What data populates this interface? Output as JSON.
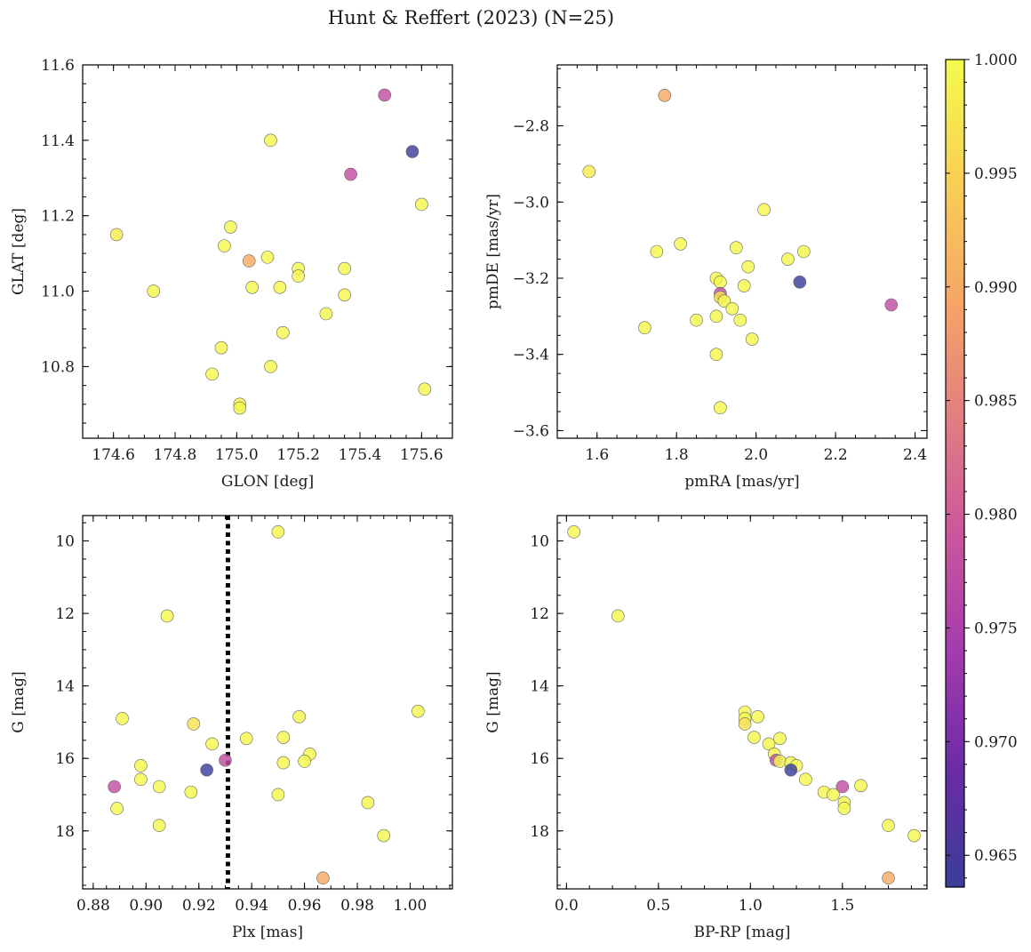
{
  "figure": {
    "title": "Hunt & Reffert (2023) (N=25)"
  },
  "colorbar": {
    "min": 0.9636,
    "max": 1.0,
    "colormap": "plasma",
    "ticks": [
      0.965,
      0.97,
      0.975,
      0.98,
      0.985,
      0.99,
      0.995,
      1.0
    ],
    "tick_labels": [
      "0.965",
      "0.970",
      "0.975",
      "0.980",
      "0.985",
      "0.990",
      "0.995",
      "1.000"
    ]
  },
  "chart_data": [
    {
      "type": "scatter",
      "xlabel": "GLON [deg]",
      "ylabel": "GLAT [deg]",
      "xlim": [
        174.5,
        175.7
      ],
      "ylim": [
        10.61,
        11.6
      ],
      "xticks": [
        174.6,
        174.8,
        175.0,
        175.2,
        175.4,
        175.6
      ],
      "xtick_labels": [
        "174.6",
        "174.8",
        "175.0",
        "175.2",
        "175.4",
        "175.6"
      ],
      "yticks": [
        10.8,
        11.0,
        11.2,
        11.4,
        11.6
      ],
      "ytick_labels": [
        "10.8",
        "11.0",
        "11.2",
        "11.4",
        "11.6"
      ],
      "points": [
        {
          "x": 174.61,
          "y": 11.15,
          "c": 0.998
        },
        {
          "x": 174.73,
          "y": 11.0,
          "c": 0.9995
        },
        {
          "x": 174.92,
          "y": 10.78,
          "c": 0.9995
        },
        {
          "x": 174.95,
          "y": 10.85,
          "c": 0.9995
        },
        {
          "x": 174.96,
          "y": 11.12,
          "c": 0.9995
        },
        {
          "x": 174.98,
          "y": 11.17,
          "c": 0.9995
        },
        {
          "x": 175.01,
          "y": 10.7,
          "c": 0.9995
        },
        {
          "x": 175.01,
          "y": 10.69,
          "c": 0.9995
        },
        {
          "x": 175.04,
          "y": 11.08,
          "c": 0.99
        },
        {
          "x": 175.05,
          "y": 11.01,
          "c": 0.9995
        },
        {
          "x": 175.1,
          "y": 11.09,
          "c": 0.9995
        },
        {
          "x": 175.11,
          "y": 11.4,
          "c": 0.9995
        },
        {
          "x": 175.11,
          "y": 10.8,
          "c": 0.9995
        },
        {
          "x": 175.14,
          "y": 11.01,
          "c": 0.9995
        },
        {
          "x": 175.15,
          "y": 10.89,
          "c": 0.9995
        },
        {
          "x": 175.2,
          "y": 11.06,
          "c": 0.9995
        },
        {
          "x": 175.2,
          "y": 11.04,
          "c": 0.9995
        },
        {
          "x": 175.29,
          "y": 10.94,
          "c": 0.9995
        },
        {
          "x": 175.35,
          "y": 11.06,
          "c": 0.9995
        },
        {
          "x": 175.35,
          "y": 10.99,
          "c": 0.9995
        },
        {
          "x": 175.37,
          "y": 11.31,
          "c": 0.9775
        },
        {
          "x": 175.48,
          "y": 11.52,
          "c": 0.9775
        },
        {
          "x": 175.57,
          "y": 11.37,
          "c": 0.9636
        },
        {
          "x": 175.6,
          "y": 11.23,
          "c": 0.9995
        },
        {
          "x": 175.61,
          "y": 10.74,
          "c": 0.9995
        }
      ]
    },
    {
      "type": "scatter",
      "xlabel": "pmRA [mas/yr]",
      "ylabel": "pmDE [mas/yr]",
      "xlim": [
        1.5,
        2.43
      ],
      "ylim": [
        -3.62,
        -2.64
      ],
      "xticks": [
        1.6,
        1.8,
        2.0,
        2.2,
        2.4
      ],
      "xtick_labels": [
        "1.6",
        "1.8",
        "2.0",
        "2.2",
        "2.4"
      ],
      "yticks": [
        -3.6,
        -3.4,
        -3.2,
        -3.0,
        -2.8
      ],
      "ytick_labels": [
        "−3.6",
        "−3.4",
        "−3.2",
        "−3.0",
        "−2.8"
      ],
      "points": [
        {
          "x": 1.77,
          "y": -2.72,
          "c": 0.99
        },
        {
          "x": 1.58,
          "y": -2.92,
          "c": 0.998
        },
        {
          "x": 2.02,
          "y": -3.02,
          "c": 0.9995
        },
        {
          "x": 1.81,
          "y": -3.11,
          "c": 0.9995
        },
        {
          "x": 1.95,
          "y": -3.12,
          "c": 0.9995
        },
        {
          "x": 1.75,
          "y": -3.13,
          "c": 0.9995
        },
        {
          "x": 2.12,
          "y": -3.13,
          "c": 0.9995
        },
        {
          "x": 2.08,
          "y": -3.15,
          "c": 0.9995
        },
        {
          "x": 1.98,
          "y": -3.17,
          "c": 0.9995
        },
        {
          "x": 1.9,
          "y": -3.2,
          "c": 0.9995
        },
        {
          "x": 2.11,
          "y": -3.21,
          "c": 0.9636
        },
        {
          "x": 1.91,
          "y": -3.21,
          "c": 0.9995
        },
        {
          "x": 1.97,
          "y": -3.22,
          "c": 0.9995
        },
        {
          "x": 1.91,
          "y": -3.24,
          "c": 0.9775
        },
        {
          "x": 1.91,
          "y": -3.25,
          "c": 0.997
        },
        {
          "x": 1.92,
          "y": -3.26,
          "c": 0.9995
        },
        {
          "x": 2.34,
          "y": -3.27,
          "c": 0.9775
        },
        {
          "x": 1.94,
          "y": -3.28,
          "c": 0.9995
        },
        {
          "x": 1.9,
          "y": -3.3,
          "c": 0.9995
        },
        {
          "x": 1.96,
          "y": -3.31,
          "c": 0.9995
        },
        {
          "x": 1.85,
          "y": -3.31,
          "c": 0.9995
        },
        {
          "x": 1.72,
          "y": -3.33,
          "c": 0.9995
        },
        {
          "x": 1.99,
          "y": -3.36,
          "c": 0.9995
        },
        {
          "x": 1.9,
          "y": -3.4,
          "c": 0.9995
        },
        {
          "x": 1.91,
          "y": -3.54,
          "c": 0.9995
        }
      ]
    },
    {
      "type": "scatter",
      "xlabel": "Plx [mas]",
      "ylabel": "G [mag]",
      "xlim": [
        0.876,
        1.016
      ],
      "ylim": [
        19.6,
        9.3
      ],
      "y_inverted": true,
      "vline": 0.931,
      "xticks": [
        0.88,
        0.9,
        0.92,
        0.94,
        0.96,
        0.98,
        1.0
      ],
      "xtick_labels": [
        "0.88",
        "0.90",
        "0.92",
        "0.94",
        "0.96",
        "0.98",
        "1.00"
      ],
      "yticks": [
        10,
        12,
        14,
        16,
        18
      ],
      "ytick_labels": [
        "10",
        "12",
        "14",
        "16",
        "18"
      ],
      "points": [
        {
          "x": 0.95,
          "y": 9.75,
          "c": 0.9995
        },
        {
          "x": 0.908,
          "y": 12.07,
          "c": 0.9995
        },
        {
          "x": 1.003,
          "y": 14.7,
          "c": 0.9995
        },
        {
          "x": 0.891,
          "y": 14.9,
          "c": 0.9995
        },
        {
          "x": 0.958,
          "y": 14.85,
          "c": 0.9995
        },
        {
          "x": 0.918,
          "y": 15.05,
          "c": 0.997
        },
        {
          "x": 0.938,
          "y": 15.45,
          "c": 0.9995
        },
        {
          "x": 0.952,
          "y": 15.42,
          "c": 0.9995
        },
        {
          "x": 0.925,
          "y": 15.6,
          "c": 0.9995
        },
        {
          "x": 0.962,
          "y": 15.88,
          "c": 0.9995
        },
        {
          "x": 0.93,
          "y": 16.05,
          "c": 0.9775
        },
        {
          "x": 0.96,
          "y": 16.08,
          "c": 0.9995
        },
        {
          "x": 0.952,
          "y": 16.12,
          "c": 0.9995
        },
        {
          "x": 0.898,
          "y": 16.2,
          "c": 0.9995
        },
        {
          "x": 0.923,
          "y": 16.32,
          "c": 0.9636
        },
        {
          "x": 0.898,
          "y": 16.58,
          "c": 0.9995
        },
        {
          "x": 0.888,
          "y": 16.78,
          "c": 0.9775
        },
        {
          "x": 0.905,
          "y": 16.78,
          "c": 0.9995
        },
        {
          "x": 0.917,
          "y": 16.93,
          "c": 0.9995
        },
        {
          "x": 0.95,
          "y": 17.0,
          "c": 0.9995
        },
        {
          "x": 0.984,
          "y": 17.22,
          "c": 0.9995
        },
        {
          "x": 0.889,
          "y": 17.38,
          "c": 0.9995
        },
        {
          "x": 0.905,
          "y": 17.85,
          "c": 0.9995
        },
        {
          "x": 0.99,
          "y": 18.13,
          "c": 0.9995
        },
        {
          "x": 0.967,
          "y": 19.3,
          "c": 0.99
        }
      ]
    },
    {
      "type": "scatter",
      "xlabel": "BP-RP [mag]",
      "ylabel": "G [mag]",
      "xlim": [
        -0.05,
        1.96
      ],
      "ylim": [
        19.6,
        9.3
      ],
      "y_inverted": true,
      "xticks": [
        0.0,
        0.5,
        1.0,
        1.5
      ],
      "xtick_labels": [
        "0.0",
        "0.5",
        "1.0",
        "1.5"
      ],
      "yticks": [
        10,
        12,
        14,
        16,
        18
      ],
      "ytick_labels": [
        "10",
        "12",
        "14",
        "16",
        "18"
      ],
      "points": [
        {
          "x": 0.04,
          "y": 9.75,
          "c": 0.9995
        },
        {
          "x": 0.28,
          "y": 12.07,
          "c": 0.9995
        },
        {
          "x": 0.97,
          "y": 14.72,
          "c": 0.9995
        },
        {
          "x": 0.97,
          "y": 14.9,
          "c": 0.9995
        },
        {
          "x": 1.04,
          "y": 14.85,
          "c": 0.9995
        },
        {
          "x": 0.97,
          "y": 15.05,
          "c": 0.997
        },
        {
          "x": 1.02,
          "y": 15.42,
          "c": 0.9995
        },
        {
          "x": 1.16,
          "y": 15.45,
          "c": 0.9995
        },
        {
          "x": 1.1,
          "y": 15.6,
          "c": 0.9995
        },
        {
          "x": 1.13,
          "y": 15.88,
          "c": 0.9995
        },
        {
          "x": 1.14,
          "y": 16.05,
          "c": 0.9775
        },
        {
          "x": 1.16,
          "y": 16.08,
          "c": 0.9995
        },
        {
          "x": 1.22,
          "y": 16.12,
          "c": 0.9995
        },
        {
          "x": 1.25,
          "y": 16.2,
          "c": 0.9995
        },
        {
          "x": 1.22,
          "y": 16.32,
          "c": 0.9636
        },
        {
          "x": 1.3,
          "y": 16.58,
          "c": 0.9995
        },
        {
          "x": 1.5,
          "y": 16.78,
          "c": 0.9775
        },
        {
          "x": 1.6,
          "y": 16.75,
          "c": 0.9995
        },
        {
          "x": 1.4,
          "y": 16.93,
          "c": 0.9995
        },
        {
          "x": 1.45,
          "y": 17.0,
          "c": 0.9995
        },
        {
          "x": 1.51,
          "y": 17.22,
          "c": 0.9995
        },
        {
          "x": 1.51,
          "y": 17.38,
          "c": 0.9995
        },
        {
          "x": 1.75,
          "y": 17.85,
          "c": 0.9995
        },
        {
          "x": 1.89,
          "y": 18.13,
          "c": 0.9995
        },
        {
          "x": 1.75,
          "y": 19.3,
          "c": 0.99
        }
      ]
    }
  ]
}
